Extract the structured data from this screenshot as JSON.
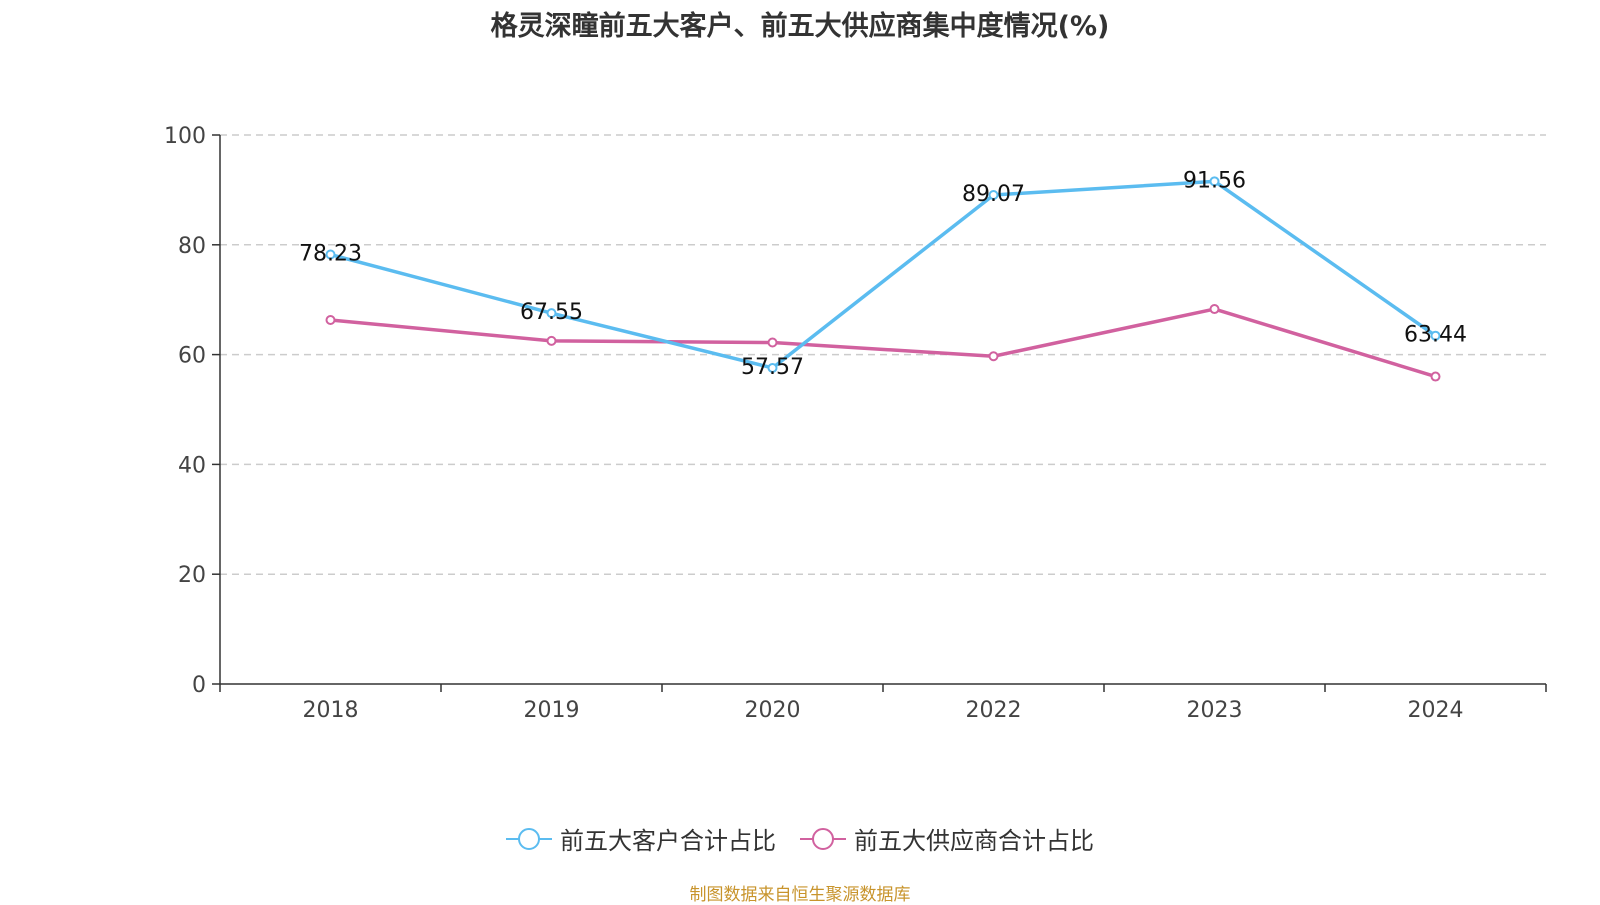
{
  "title": "格灵深瞳前五大客户、前五大供应商集中度情况(%)",
  "source": "制图数据来自恒生聚源数据库",
  "chart_data": {
    "type": "line",
    "categories": [
      "2018",
      "2019",
      "2020",
      "2022",
      "2023",
      "2024"
    ],
    "ylim": [
      0,
      100
    ],
    "yticks": [
      0,
      20,
      40,
      60,
      80,
      100
    ],
    "grid": true,
    "legend_position": "bottom",
    "series": [
      {
        "name": "前五大客户合计占比",
        "color": "#5bbcf0",
        "values": [
          78.23,
          67.55,
          57.57,
          89.07,
          91.56,
          63.44
        ],
        "labels": [
          "78.23",
          "67.55",
          "57.57",
          "89.07",
          "91.56",
          "63.44"
        ]
      },
      {
        "name": "前五大供应商合计占比",
        "color": "#d1619f",
        "values": [
          66.3,
          62.5,
          62.2,
          59.7,
          68.3,
          56.0
        ]
      }
    ]
  }
}
